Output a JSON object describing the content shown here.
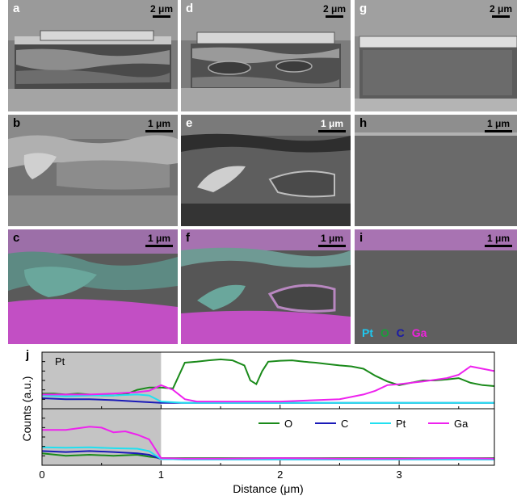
{
  "panels": {
    "a": {
      "label": "a",
      "scale": "2 μm"
    },
    "d": {
      "label": "d",
      "scale": "2 μm"
    },
    "g": {
      "label": "g",
      "scale": "2 μm"
    },
    "b": {
      "label": "b",
      "scale": "1 μm"
    },
    "e": {
      "label": "e",
      "scale": "1 μm"
    },
    "h": {
      "label": "h",
      "scale": "1 μm"
    },
    "c": {
      "label": "c",
      "scale": "1 μm"
    },
    "f": {
      "label": "f",
      "scale": "1 μm"
    },
    "i": {
      "label": "i",
      "scale": "1 μm"
    }
  },
  "eds_legend": [
    {
      "label": "Pt",
      "color": "#1ec8f0"
    },
    {
      "label": "O",
      "color": "#1a9e3a"
    },
    {
      "label": "C",
      "color": "#1a1aa8"
    },
    {
      "label": "Ga",
      "color": "#ee22dd"
    }
  ],
  "chart_data": {
    "type": "line",
    "panel_label": "j",
    "xlabel": "Distance (μm)",
    "ylabel": "Counts (a.u.)",
    "xlim": [
      0,
      3.8
    ],
    "xticks": [
      "0",
      "1",
      "2",
      "3"
    ],
    "shaded_region": {
      "x": [
        0,
        1
      ],
      "label": "Pt"
    },
    "legend": [
      "O",
      "C",
      "Pt",
      "Ga"
    ],
    "colors": {
      "O": "#1a8a1a",
      "C": "#1a1ab8",
      "Pt": "#22e0f0",
      "Ga": "#ee22ee"
    },
    "top_panel": {
      "ylim": [
        0,
        1
      ],
      "series": [
        {
          "name": "O",
          "x": [
            0,
            0.1,
            0.2,
            0.3,
            0.4,
            0.5,
            0.6,
            0.7,
            0.8,
            0.9,
            1.0,
            1.1,
            1.2,
            1.3,
            1.4,
            1.5,
            1.6,
            1.7,
            1.75,
            1.8,
            1.85,
            1.9,
            2.0,
            2.1,
            2.2,
            2.3,
            2.4,
            2.5,
            2.6,
            2.7,
            2.8,
            2.9,
            3.0,
            3.1,
            3.2,
            3.3,
            3.4,
            3.5,
            3.6,
            3.7,
            3.8
          ],
          "y": [
            0.22,
            0.22,
            0.2,
            0.22,
            0.2,
            0.18,
            0.18,
            0.2,
            0.3,
            0.35,
            0.35,
            0.33,
            0.88,
            0.9,
            0.93,
            0.95,
            0.93,
            0.82,
            0.5,
            0.42,
            0.7,
            0.9,
            0.92,
            0.93,
            0.9,
            0.88,
            0.85,
            0.82,
            0.8,
            0.75,
            0.6,
            0.48,
            0.4,
            0.45,
            0.5,
            0.5,
            0.52,
            0.55,
            0.45,
            0.4,
            0.38
          ]
        },
        {
          "name": "C",
          "x": [
            0,
            0.2,
            0.4,
            0.6,
            0.8,
            1.0,
            1.2,
            1.5,
            2.0,
            2.5,
            3.0,
            3.5,
            3.8
          ],
          "y": [
            0.12,
            0.1,
            0.1,
            0.08,
            0.05,
            0.02,
            0.02,
            0.02,
            0.02,
            0.02,
            0.02,
            0.02,
            0.02
          ]
        },
        {
          "name": "Pt",
          "x": [
            0,
            0.2,
            0.4,
            0.6,
            0.8,
            0.9,
            1.0,
            1.2,
            1.5,
            2.0,
            2.5,
            3.0,
            3.5,
            3.8
          ],
          "y": [
            0.18,
            0.16,
            0.18,
            0.18,
            0.2,
            0.18,
            0.05,
            0.02,
            0.02,
            0.02,
            0.02,
            0.02,
            0.02,
            0.02
          ]
        },
        {
          "name": "Ga",
          "x": [
            0,
            0.2,
            0.4,
            0.6,
            0.8,
            0.9,
            1.0,
            1.1,
            1.2,
            1.3,
            1.5,
            2.0,
            2.3,
            2.5,
            2.7,
            2.8,
            2.9,
            3.0,
            3.2,
            3.4,
            3.5,
            3.6,
            3.7,
            3.8
          ],
          "y": [
            0.2,
            0.2,
            0.2,
            0.22,
            0.25,
            0.28,
            0.4,
            0.3,
            0.1,
            0.05,
            0.05,
            0.05,
            0.08,
            0.1,
            0.2,
            0.28,
            0.4,
            0.42,
            0.48,
            0.55,
            0.62,
            0.8,
            0.75,
            0.7
          ]
        }
      ]
    },
    "bottom_panel": {
      "ylim": [
        0,
        1
      ],
      "series": [
        {
          "name": "O",
          "x": [
            0,
            0.2,
            0.4,
            0.6,
            0.8,
            0.9,
            1.0,
            1.2,
            1.5,
            2.0,
            2.5,
            3.0,
            3.5,
            3.8
          ],
          "y": [
            0.15,
            0.1,
            0.12,
            0.1,
            0.12,
            0.08,
            0.05,
            0.05,
            0.05,
            0.05,
            0.05,
            0.05,
            0.05,
            0.05
          ]
        },
        {
          "name": "C",
          "x": [
            0,
            0.2,
            0.4,
            0.6,
            0.8,
            0.9,
            1.0,
            1.2,
            1.5,
            2.0,
            2.5,
            3.0,
            3.5,
            3.8
          ],
          "y": [
            0.2,
            0.18,
            0.2,
            0.18,
            0.15,
            0.12,
            0.03,
            0.02,
            0.02,
            0.02,
            0.02,
            0.02,
            0.02,
            0.02
          ]
        },
        {
          "name": "Pt",
          "x": [
            0,
            0.2,
            0.4,
            0.6,
            0.8,
            0.9,
            1.0,
            1.2,
            1.5,
            2.0,
            2.5,
            3.0,
            3.5,
            3.8
          ],
          "y": [
            0.28,
            0.27,
            0.28,
            0.26,
            0.25,
            0.2,
            0.03,
            0.02,
            0.02,
            0.02,
            0.02,
            0.02,
            0.02,
            0.02
          ]
        },
        {
          "name": "Ga",
          "x": [
            0,
            0.2,
            0.4,
            0.5,
            0.6,
            0.7,
            0.8,
            0.9,
            1.0,
            1.2,
            1.5,
            2.0,
            2.5,
            3.0,
            3.5,
            3.8
          ],
          "y": [
            0.65,
            0.65,
            0.72,
            0.7,
            0.6,
            0.62,
            0.55,
            0.45,
            0.05,
            0.04,
            0.04,
            0.05,
            0.04,
            0.04,
            0.05,
            0.04
          ]
        }
      ]
    }
  }
}
